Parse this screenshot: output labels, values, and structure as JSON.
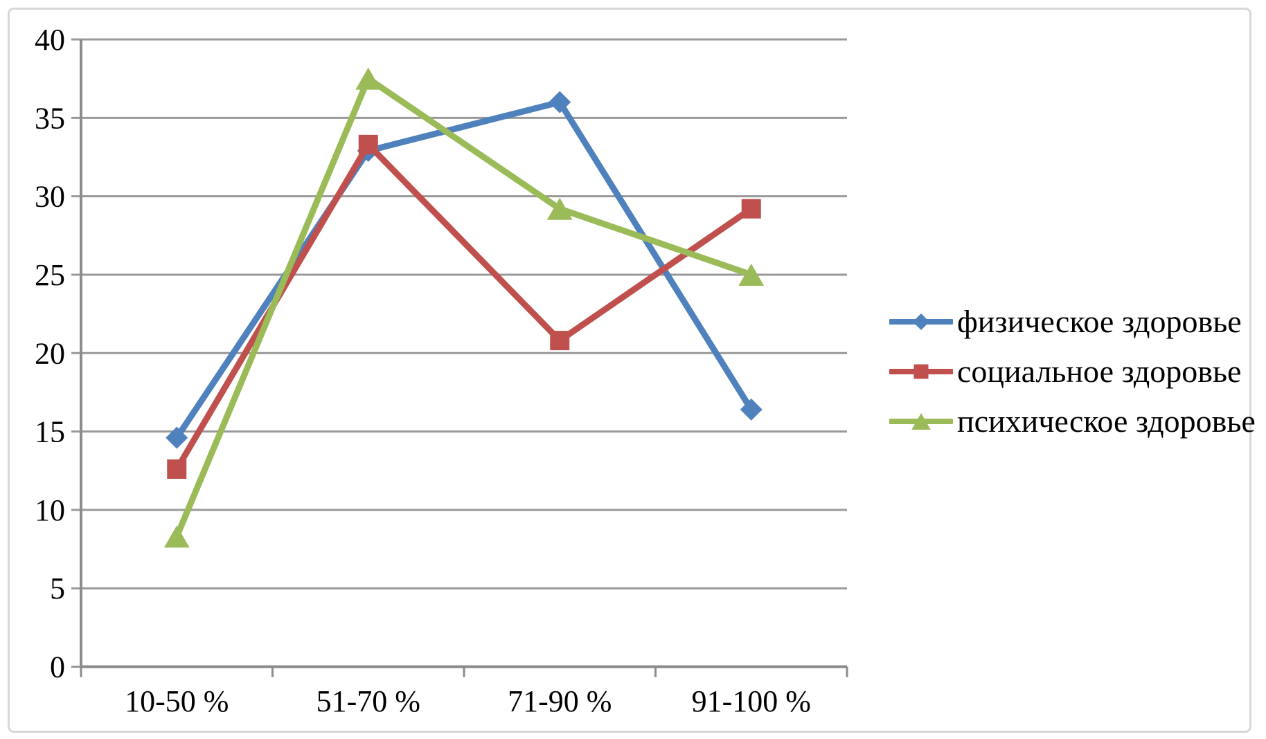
{
  "chart_data": {
    "type": "line",
    "title": "",
    "xlabel": "",
    "ylabel": "",
    "categories": [
      "10-50 %",
      "51-70 %",
      "71-90 %",
      "91-100 %"
    ],
    "series": [
      {
        "name": "физическое здоровье",
        "color": "#4F81BD",
        "marker": "diamond",
        "values": [
          14.6,
          32.9,
          36.0,
          16.4
        ]
      },
      {
        "name": "социальное здоровье",
        "color": "#C0504D",
        "marker": "square",
        "values": [
          12.6,
          33.3,
          20.8,
          29.2
        ]
      },
      {
        "name": "психическое здоровье",
        "color": "#9BBB59",
        "marker": "triangle",
        "values": [
          8.3,
          37.5,
          29.2,
          25.0
        ]
      }
    ],
    "ylim": [
      0,
      40
    ],
    "yticks": [
      0,
      5,
      10,
      15,
      20,
      25,
      30,
      35,
      40
    ],
    "grid": true,
    "legend_position": "right",
    "colors": {
      "background": "#ffffff",
      "gridline": "#999999",
      "axis": "#8c8c8c",
      "frame": "#d7d7d7",
      "text": "#000000"
    }
  }
}
